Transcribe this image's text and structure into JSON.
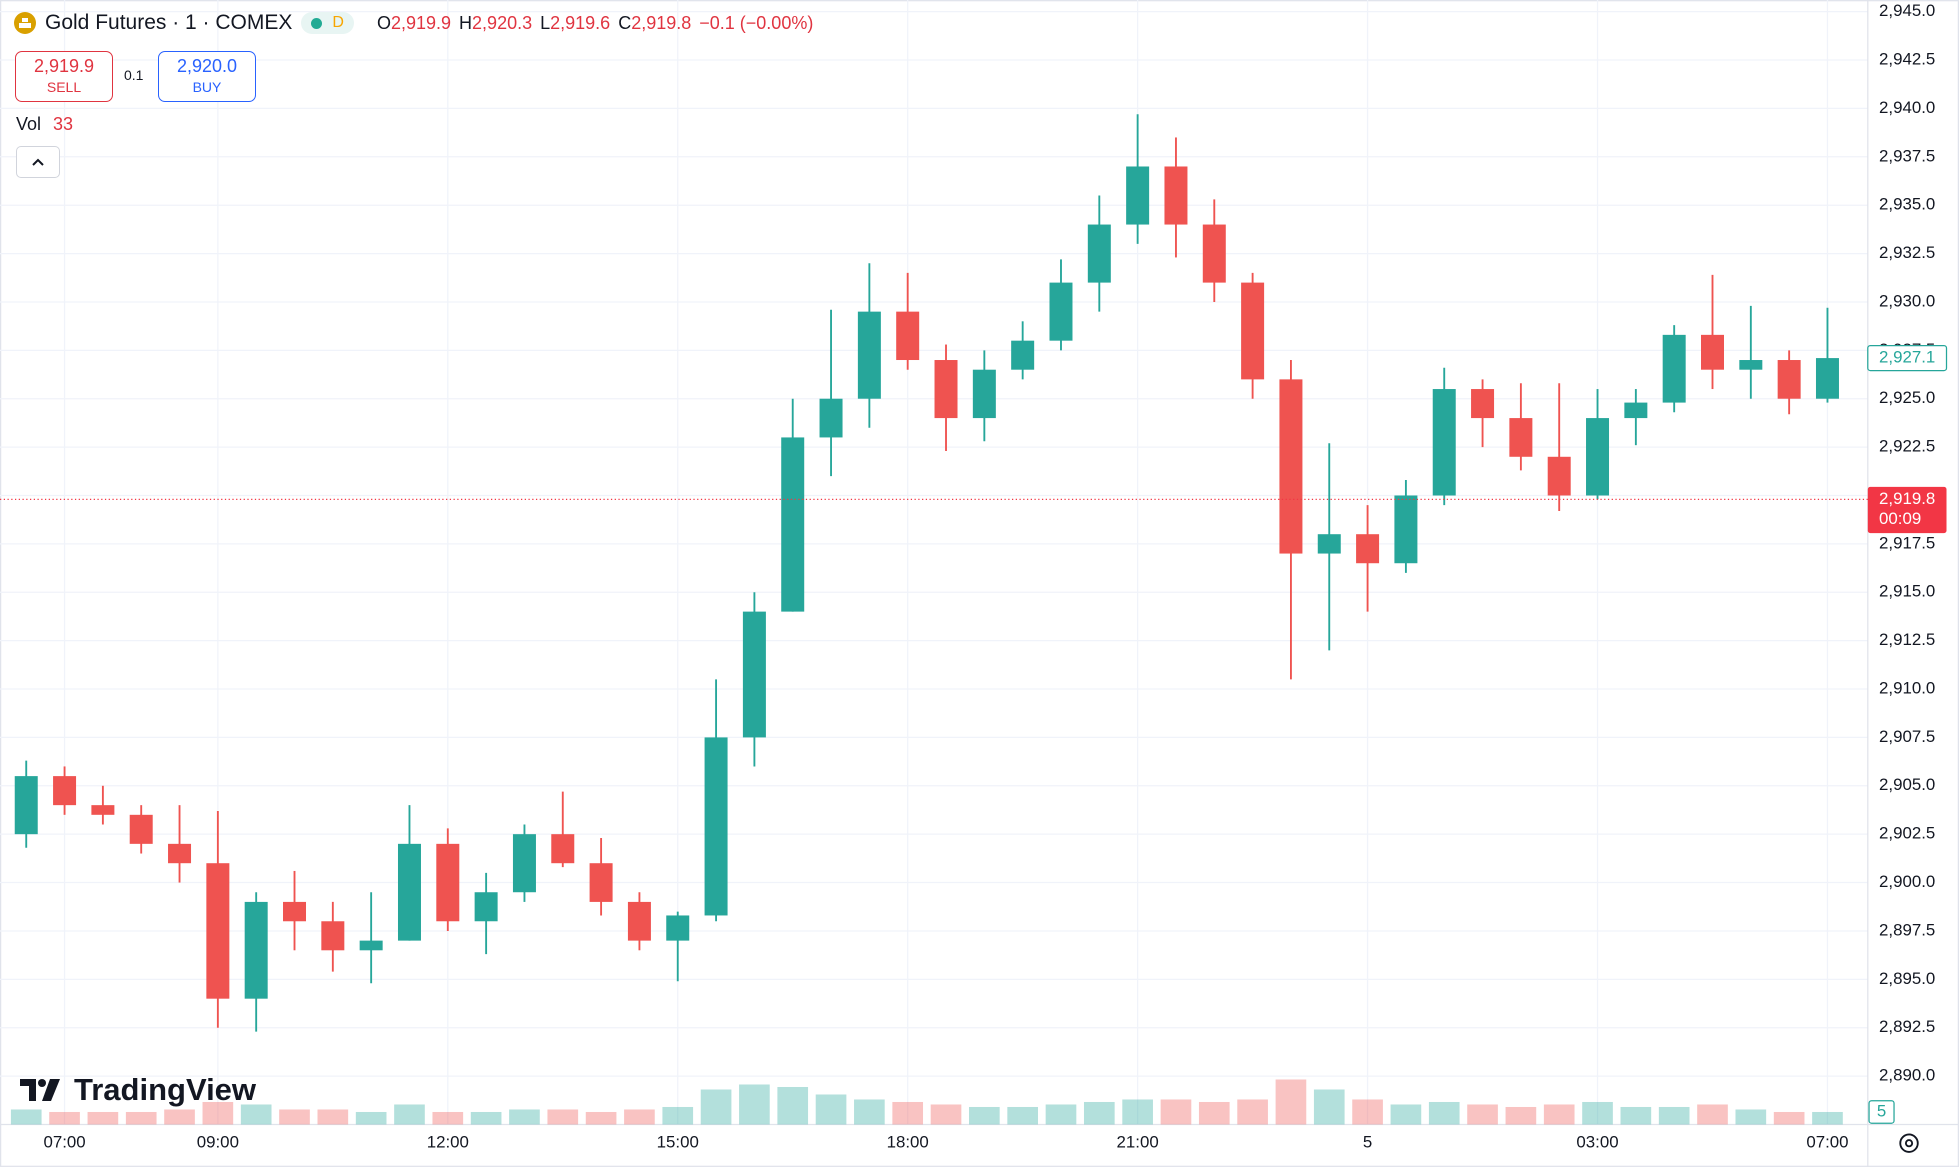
{
  "header": {
    "symbol": "Gold Futures · 1 · COMEX",
    "badge": "D",
    "ohlc": [
      {
        "key": "O",
        "value": "2,919.9"
      },
      {
        "key": "H",
        "value": "2,920.3"
      },
      {
        "key": "L",
        "value": "2,919.6"
      },
      {
        "key": "C",
        "value": "2,919.8"
      }
    ],
    "change": "−0.1 (−0.00%)"
  },
  "trade": {
    "sell_price": "2,919.9",
    "sell": "SELL",
    "spread": "0.1",
    "buy_price": "2,920.0",
    "buy": "BUY"
  },
  "watermark": "TradingView",
  "chart_data": {
    "type": "candlestick",
    "x": [
      "06:30",
      "07:00",
      "07:30",
      "08:00",
      "08:30",
      "09:00",
      "09:30",
      "10:00",
      "10:30",
      "11:00",
      "11:30",
      "12:00",
      "12:30",
      "13:00",
      "13:30",
      "14:00",
      "14:30",
      "15:00",
      "15:30",
      "16:00",
      "16:30",
      "17:00",
      "17:30",
      "18:00",
      "18:30",
      "19:00",
      "19:30",
      "20:00",
      "20:30",
      "21:00",
      "21:30",
      "22:00",
      "22:30",
      "23:00",
      "23:30",
      "5",
      "00:30",
      "01:00",
      "01:30",
      "02:00",
      "02:30",
      "03:00",
      "03:30",
      "04:00",
      "04:30",
      "06:00",
      "06:30",
      "07:00"
    ],
    "open": [
      2902.5,
      2905.5,
      2904,
      2903.5,
      2902,
      2901,
      2894,
      2899,
      2898,
      2896.5,
      2897,
      2902,
      2898,
      2899.5,
      2902.5,
      2901,
      2899,
      2897,
      2898.3,
      2907.5,
      2914,
      2923,
      2925,
      2929.5,
      2927,
      2924,
      2926.5,
      2928,
      2931,
      2934,
      2937,
      2934,
      2931,
      2926,
      2917,
      2918,
      2916.5,
      2920,
      2925.5,
      2924,
      2922,
      2920,
      2924,
      2924.8,
      2928.3,
      2926.5,
      2927,
      2925
    ],
    "high": [
      2906.3,
      2906,
      2905,
      2904,
      2904,
      2903.7,
      2899.5,
      2900.6,
      2899,
      2899.5,
      2904,
      2902.8,
      2900.5,
      2903,
      2904.7,
      2902.3,
      2899.5,
      2898.5,
      2910.5,
      2915,
      2925,
      2929.6,
      2932,
      2931.5,
      2927.8,
      2927.5,
      2929,
      2932.2,
      2935.5,
      2939.7,
      2938.5,
      2935.3,
      2931.5,
      2927,
      2922.7,
      2919.5,
      2920.8,
      2926.6,
      2926,
      2925.8,
      2925.8,
      2925.5,
      2925.5,
      2928.8,
      2931.4,
      2929.8,
      2927.5,
      2929.7
    ],
    "low": [
      2901.8,
      2903.5,
      2903,
      2901.5,
      2900,
      2892.5,
      2892.3,
      2896.5,
      2895.4,
      2894.8,
      2897,
      2897.5,
      2896.3,
      2899,
      2900.8,
      2898.3,
      2896.5,
      2894.9,
      2898,
      2906,
      2914,
      2921,
      2923.5,
      2926.5,
      2922.3,
      2922.8,
      2926,
      2927.5,
      2929.5,
      2933,
      2932.3,
      2930,
      2925,
      2910.5,
      2912,
      2914,
      2916,
      2919.5,
      2922.5,
      2921.3,
      2919.2,
      2919.8,
      2922.6,
      2924.3,
      2925.5,
      2925,
      2924.2,
      2924.8
    ],
    "close": [
      2905.5,
      2904,
      2903.5,
      2902,
      2901,
      2894,
      2899,
      2898,
      2896.5,
      2897,
      2902,
      2898,
      2899.5,
      2902.5,
      2901,
      2899,
      2897,
      2898.3,
      2907.5,
      2914,
      2923,
      2925,
      2929.5,
      2927,
      2924,
      2926.5,
      2928,
      2931,
      2934,
      2937,
      2934,
      2931,
      2926,
      2917,
      2918,
      2916.5,
      2920,
      2925.5,
      2924,
      2922,
      2920,
      2924,
      2924.8,
      2928.3,
      2926.5,
      2927,
      2925,
      2927.1
    ],
    "up_color": "#26a69a",
    "down_color": "#ef5350",
    "ylim": [
      2887.5,
      2945.6
    ],
    "yticks": [
      {
        "value": 2890,
        "label": "2,890.0"
      },
      {
        "value": 2892.5,
        "label": "2,892.5"
      },
      {
        "value": 2895,
        "label": "2,895.0"
      },
      {
        "value": 2897.5,
        "label": "2,897.5"
      },
      {
        "value": 2900,
        "label": "2,900.0"
      },
      {
        "value": 2902.5,
        "label": "2,902.5"
      },
      {
        "value": 2905,
        "label": "2,905.0"
      },
      {
        "value": 2907.5,
        "label": "2,907.5"
      },
      {
        "value": 2910,
        "label": "2,910.0"
      },
      {
        "value": 2912.5,
        "label": "2,912.5"
      },
      {
        "value": 2915,
        "label": "2,915.0"
      },
      {
        "value": 2917.5,
        "label": "2,917.5"
      },
      {
        "value": 2920,
        "label": "2,920.0"
      },
      {
        "value": 2922.5,
        "label": "2,922.5"
      },
      {
        "value": 2925,
        "label": "2,925.0"
      },
      {
        "value": 2927.5,
        "label": "2,927.5"
      },
      {
        "value": 2930,
        "label": "2,930.0"
      },
      {
        "value": 2932.5,
        "label": "2,932.5"
      },
      {
        "value": 2935,
        "label": "2,935.0"
      },
      {
        "value": 2937.5,
        "label": "2,937.5"
      },
      {
        "value": 2940,
        "label": "2,940.0"
      },
      {
        "value": 2942.5,
        "label": "2,942.5"
      },
      {
        "value": 2945,
        "label": "2,945.0"
      }
    ],
    "xticks": [
      "07:00",
      "09:00",
      "12:00",
      "15:00",
      "18:00",
      "21:00",
      "5",
      "03:00",
      "07:00"
    ],
    "grid": true,
    "last_price": {
      "value": 2919.8,
      "label": "2,919.8"
    },
    "countdown": "00:09",
    "marker_price": {
      "value": 2927.1,
      "label": "2,927.1"
    },
    "volume": {
      "label": "Vol",
      "last": 33,
      "ylim": [
        0,
        450
      ],
      "yticks": [
        5
      ],
      "values": [
        6,
        5,
        5,
        5,
        6,
        9,
        8,
        6,
        6,
        5,
        8,
        5,
        5,
        6,
        6,
        5,
        6,
        7,
        14,
        16,
        15,
        12,
        10,
        9,
        8,
        7,
        7,
        8,
        9,
        10,
        10,
        9,
        10,
        18,
        14,
        10,
        8,
        9,
        8,
        7,
        8,
        9,
        7,
        7,
        8,
        6,
        5,
        5
      ]
    }
  }
}
